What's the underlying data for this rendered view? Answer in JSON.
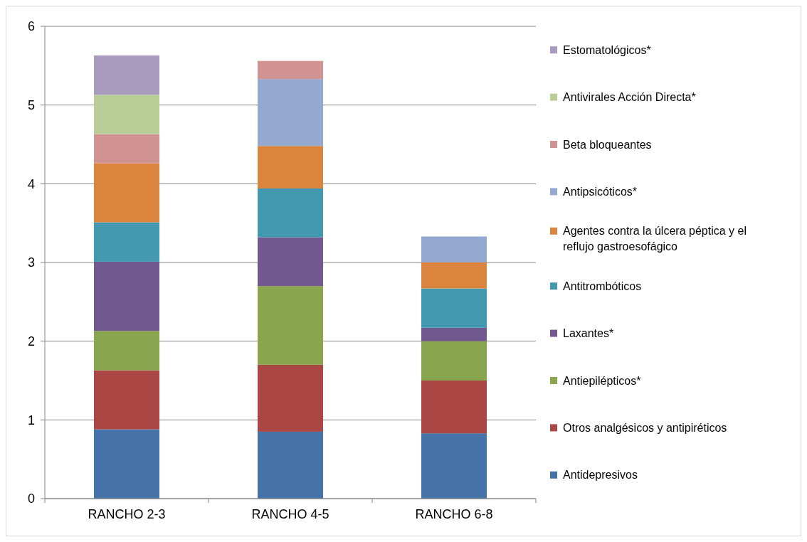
{
  "chart_data": {
    "type": "bar",
    "stacked": true,
    "categories": [
      "RANCHO 2-3",
      "RANCHO 4-5",
      "RANCHO 6-8"
    ],
    "ylim": [
      0,
      6
    ],
    "yticks": [
      0,
      1,
      2,
      3,
      4,
      5,
      6
    ],
    "grid": "y",
    "legend": "right",
    "series": [
      {
        "name": "Antidepresivos",
        "color": "#4572a7",
        "values": [
          0.88,
          0.85,
          0.83
        ]
      },
      {
        "name": "Otros analgésicos y antipiréticos",
        "color": "#aa4643",
        "values": [
          0.75,
          0.85,
          0.67
        ]
      },
      {
        "name": "Antiepilépticos*",
        "color": "#89a54e",
        "values": [
          0.5,
          1.0,
          0.5
        ]
      },
      {
        "name": "Laxantes*",
        "color": "#71588f",
        "values": [
          0.88,
          0.62,
          0.17
        ]
      },
      {
        "name": "Antitrombóticos",
        "color": "#4198af",
        "values": [
          0.5,
          0.62,
          0.5
        ]
      },
      {
        "name": "Agentes contra la úlcera péptica y el reflujo gastroesofágico",
        "color": "#db843d",
        "values": [
          0.75,
          0.54,
          0.33
        ]
      },
      {
        "name": "Antipsicóticos*",
        "color": "#93a9cf",
        "values": [
          0,
          0.85,
          0.33
        ]
      },
      {
        "name": "Beta bloqueantes",
        "color": "#d19392",
        "values": [
          0.37,
          0.23,
          0
        ]
      },
      {
        "name": "Antivirales Acción Directa*",
        "color": "#b9cd96",
        "values": [
          0.5,
          0,
          0
        ]
      },
      {
        "name": "Estomatológicos*",
        "color": "#a99bbd",
        "values": [
          0.5,
          0,
          0
        ]
      }
    ]
  }
}
